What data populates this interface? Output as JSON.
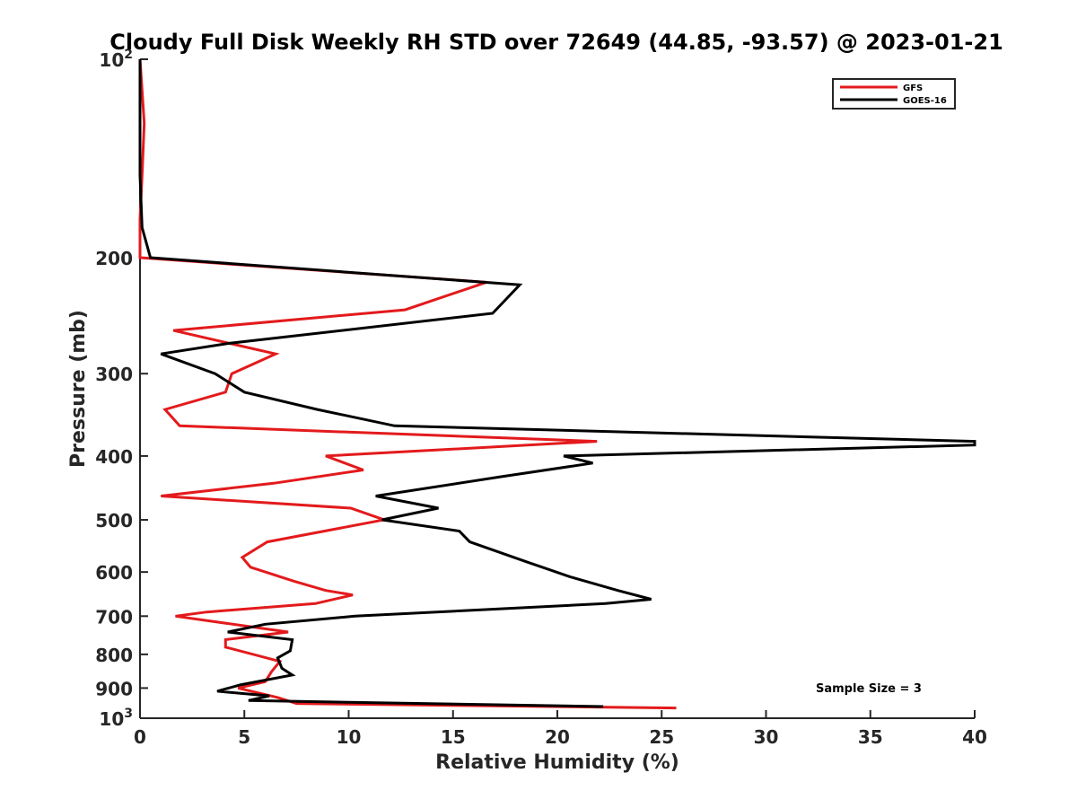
{
  "chart_data": {
    "type": "line",
    "title": "Cloudy Full Disk Weekly RH STD over 72649 (44.85, -93.57) @ 2023-01-21",
    "xlabel": "Relative Humidity (%)",
    "ylabel": "Pressure (mb)",
    "xlim": [
      0,
      40
    ],
    "ylim": [
      100,
      1000
    ],
    "y_scale": "log",
    "y_reversed": true,
    "x_ticks": [
      "0",
      "5",
      "10",
      "15",
      "20",
      "25",
      "30",
      "35",
      "40"
    ],
    "y_ticks": [
      {
        "value": 100,
        "base": "10",
        "exp": "2"
      },
      {
        "value": 200,
        "label": "200"
      },
      {
        "value": 300,
        "label": "300"
      },
      {
        "value": 400,
        "label": "400"
      },
      {
        "value": 500,
        "label": "500"
      },
      {
        "value": 600,
        "label": "600"
      },
      {
        "value": 700,
        "label": "700"
      },
      {
        "value": 800,
        "label": "800"
      },
      {
        "value": 900,
        "label": "900"
      },
      {
        "value": 1000,
        "base": "10",
        "exp": "3"
      }
    ],
    "legend_position": "top-right",
    "series": [
      {
        "name": "GFS",
        "color": "#e31a1c",
        "points": [
          [
            0.0,
            100
          ],
          [
            0.2,
            125
          ],
          [
            0.1,
            150
          ],
          [
            0.0,
            175
          ],
          [
            0.0,
            200
          ],
          [
            16.6,
            218
          ],
          [
            12.7,
            240
          ],
          [
            1.6,
            258
          ],
          [
            6.5,
            280
          ],
          [
            4.4,
            300
          ],
          [
            4.1,
            320
          ],
          [
            1.2,
            340
          ],
          [
            1.9,
            360
          ],
          [
            21.9,
            380
          ],
          [
            8.9,
            400
          ],
          [
            10.7,
            420
          ],
          [
            6.4,
            440
          ],
          [
            1.0,
            460
          ],
          [
            10.1,
            480
          ],
          [
            11.7,
            500
          ],
          [
            6.1,
            540
          ],
          [
            4.9,
            570
          ],
          [
            5.3,
            590
          ],
          [
            7.4,
            620
          ],
          [
            8.9,
            640
          ],
          [
            10.2,
            650
          ],
          [
            8.4,
            670
          ],
          [
            3.2,
            690
          ],
          [
            1.7,
            700
          ],
          [
            7.1,
            740
          ],
          [
            4.1,
            760
          ],
          [
            4.1,
            780
          ],
          [
            6.7,
            820
          ],
          [
            6.3,
            850
          ],
          [
            6.0,
            880
          ],
          [
            4.7,
            900
          ],
          [
            6.6,
            930
          ],
          [
            7.5,
            950
          ],
          [
            25.7,
            965
          ]
        ]
      },
      {
        "name": "GOES-16",
        "color": "#000000",
        "points": [
          [
            0.0,
            100
          ],
          [
            0.0,
            150
          ],
          [
            0.1,
            180
          ],
          [
            0.5,
            200
          ],
          [
            18.2,
            220
          ],
          [
            16.9,
            243
          ],
          [
            4.2,
            270
          ],
          [
            1.0,
            280
          ],
          [
            3.6,
            300
          ],
          [
            5.0,
            320
          ],
          [
            8.5,
            340
          ],
          [
            12.2,
            360
          ],
          [
            40.0,
            380
          ],
          [
            40.0,
            385
          ],
          [
            20.3,
            400
          ],
          [
            21.7,
            410
          ],
          [
            17.3,
            430
          ],
          [
            11.3,
            460
          ],
          [
            14.3,
            480
          ],
          [
            11.6,
            500
          ],
          [
            15.3,
            520
          ],
          [
            15.8,
            540
          ],
          [
            18.6,
            580
          ],
          [
            20.6,
            610
          ],
          [
            22.9,
            640
          ],
          [
            24.5,
            660
          ],
          [
            22.3,
            670
          ],
          [
            10.3,
            700
          ],
          [
            6.0,
            720
          ],
          [
            4.2,
            740
          ],
          [
            7.3,
            760
          ],
          [
            7.2,
            790
          ],
          [
            6.6,
            810
          ],
          [
            6.8,
            840
          ],
          [
            7.3,
            860
          ],
          [
            4.8,
            890
          ],
          [
            3.7,
            910
          ],
          [
            6.2,
            925
          ],
          [
            5.2,
            940
          ],
          [
            22.2,
            960
          ]
        ]
      }
    ],
    "annotation": "Sample Size = 3"
  }
}
